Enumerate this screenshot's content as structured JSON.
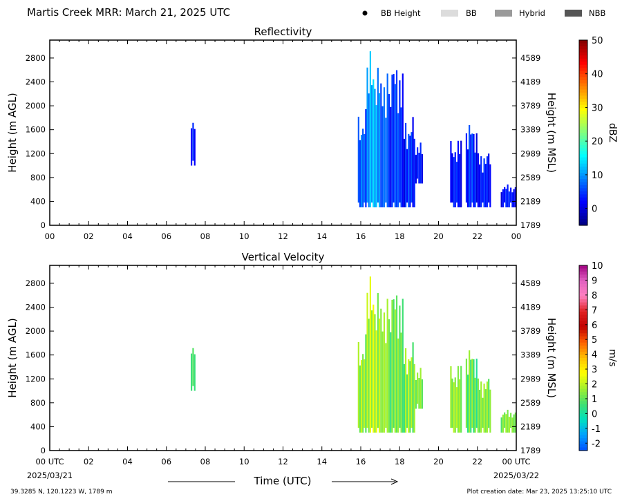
{
  "header": {
    "title": "Martis Creek MRR:  March 21, 2025 UTC",
    "legend": [
      {
        "label": "BB Height",
        "symbol": "dot",
        "color": "#000000"
      },
      {
        "label": "BB",
        "symbol": "swatch",
        "color": "#dcdcdc"
      },
      {
        "label": "Hybrid",
        "symbol": "swatch",
        "color": "#9a9a9a"
      },
      {
        "label": "NBB",
        "symbol": "swatch",
        "color": "#555555"
      }
    ]
  },
  "footer": {
    "location": "39.3285 N, 120.1223 W, 1789 m",
    "creation_date": "Plot creation date: Mar 23, 2025 13:25:10 UTC",
    "xlabel": "Time (UTC)",
    "start_date": "2025/03/21",
    "end_date": "2025/03/22"
  },
  "chart_data": [
    {
      "type": "heatmap",
      "title": "Reflectivity",
      "ylabel": "Height (m AGL)",
      "y2label": "Height (m MSL)",
      "colorbar_label": "dBZ",
      "xlim": [
        0,
        24
      ],
      "ylim": [
        0,
        3100
      ],
      "xticks": [
        "00",
        "02",
        "04",
        "06",
        "08",
        "10",
        "12",
        "14",
        "16",
        "18",
        "20",
        "22",
        "00"
      ],
      "yticks": [
        0,
        400,
        800,
        1200,
        1600,
        2000,
        2400,
        2800
      ],
      "y2ticks": [
        1789,
        2189,
        2589,
        2989,
        3389,
        3789,
        4189,
        4589
      ],
      "colorbar": {
        "min": -5,
        "max": 50,
        "ticks": [
          0,
          10,
          20,
          30,
          40,
          50
        ],
        "colors": [
          "#00007f",
          "#0000ff",
          "#007fff",
          "#00ffff",
          "#7fff7f",
          "#ffff00",
          "#ff7f00",
          "#ff0000",
          "#7f0000"
        ]
      },
      "echoes": [
        {
          "t0": 7.25,
          "t1": 7.5,
          "hbot": 1000,
          "htop": 1800,
          "value": 0
        },
        {
          "t0": 15.85,
          "t1": 16.3,
          "hbot": 300,
          "htop": 2000,
          "value": 4
        },
        {
          "t0": 16.3,
          "t1": 17.0,
          "hbot": 300,
          "htop": 3000,
          "value": 8
        },
        {
          "t0": 17.0,
          "t1": 17.5,
          "hbot": 300,
          "htop": 2800,
          "value": 4
        },
        {
          "t0": 17.5,
          "t1": 18.2,
          "hbot": 300,
          "htop": 2900,
          "value": 2
        },
        {
          "t0": 18.2,
          "t1": 18.8,
          "hbot": 300,
          "htop": 1900,
          "value": 1
        },
        {
          "t0": 18.8,
          "t1": 19.2,
          "hbot": 700,
          "htop": 1400,
          "value": 0
        },
        {
          "t0": 20.6,
          "t1": 21.2,
          "hbot": 300,
          "htop": 1500,
          "value": 0
        },
        {
          "t0": 21.4,
          "t1": 22.0,
          "hbot": 300,
          "htop": 1800,
          "value": 1
        },
        {
          "t0": 22.0,
          "t1": 22.7,
          "hbot": 300,
          "htop": 1300,
          "value": 0
        },
        {
          "t0": 23.2,
          "t1": 24.0,
          "hbot": 300,
          "htop": 700,
          "value": 0
        }
      ]
    },
    {
      "type": "heatmap",
      "title": "Vertical Velocity",
      "ylabel": "Height (m AGL)",
      "y2label": "Height (m MSL)",
      "colorbar_label": "m/s",
      "xlim": [
        0,
        24
      ],
      "ylim": [
        0,
        3100
      ],
      "xticks": [
        "00 UTC",
        "02",
        "04",
        "06",
        "08",
        "10",
        "12",
        "14",
        "16",
        "18",
        "20",
        "22",
        "00 UTC"
      ],
      "yticks": [
        0,
        400,
        800,
        1200,
        1600,
        2000,
        2400,
        2800
      ],
      "y2ticks": [
        1789,
        2189,
        2589,
        2989,
        3389,
        3789,
        4189,
        4589
      ],
      "colorbar": {
        "min": -2.5,
        "max": 10,
        "ticks": [
          -2,
          -1,
          0,
          1,
          2,
          3,
          4,
          5,
          6,
          7,
          8,
          9,
          10
        ],
        "colors": [
          "#0050ff",
          "#00a0ff",
          "#00e0c0",
          "#40e070",
          "#a0f030",
          "#ffff00",
          "#ffc000",
          "#ff6000",
          "#c00000",
          "#e02020",
          "#ff80c0",
          "#e060c0",
          "#a00080"
        ]
      },
      "echoes": [
        {
          "t0": 7.25,
          "t1": 7.5,
          "hbot": 1000,
          "htop": 1800,
          "value": 0.3
        },
        {
          "t0": 15.85,
          "t1": 16.3,
          "hbot": 300,
          "htop": 2000,
          "value": 1.2
        },
        {
          "t0": 16.3,
          "t1": 17.0,
          "hbot": 300,
          "htop": 3000,
          "value": 1.5
        },
        {
          "t0": 17.0,
          "t1": 17.5,
          "hbot": 300,
          "htop": 2800,
          "value": 1.2
        },
        {
          "t0": 17.5,
          "t1": 18.2,
          "hbot": 300,
          "htop": 2900,
          "value": 0.8
        },
        {
          "t0": 18.2,
          "t1": 18.8,
          "hbot": 300,
          "htop": 1900,
          "value": 1.0
        },
        {
          "t0": 18.8,
          "t1": 19.2,
          "hbot": 700,
          "htop": 1400,
          "value": 1.0
        },
        {
          "t0": 20.6,
          "t1": 21.2,
          "hbot": 300,
          "htop": 1500,
          "value": 1.2
        },
        {
          "t0": 21.4,
          "t1": 22.0,
          "hbot": 300,
          "htop": 1800,
          "value": 0.6
        },
        {
          "t0": 22.0,
          "t1": 22.7,
          "hbot": 300,
          "htop": 1300,
          "value": 1.0
        },
        {
          "t0": 23.2,
          "t1": 24.0,
          "hbot": 300,
          "htop": 700,
          "value": 1.0
        }
      ]
    }
  ]
}
